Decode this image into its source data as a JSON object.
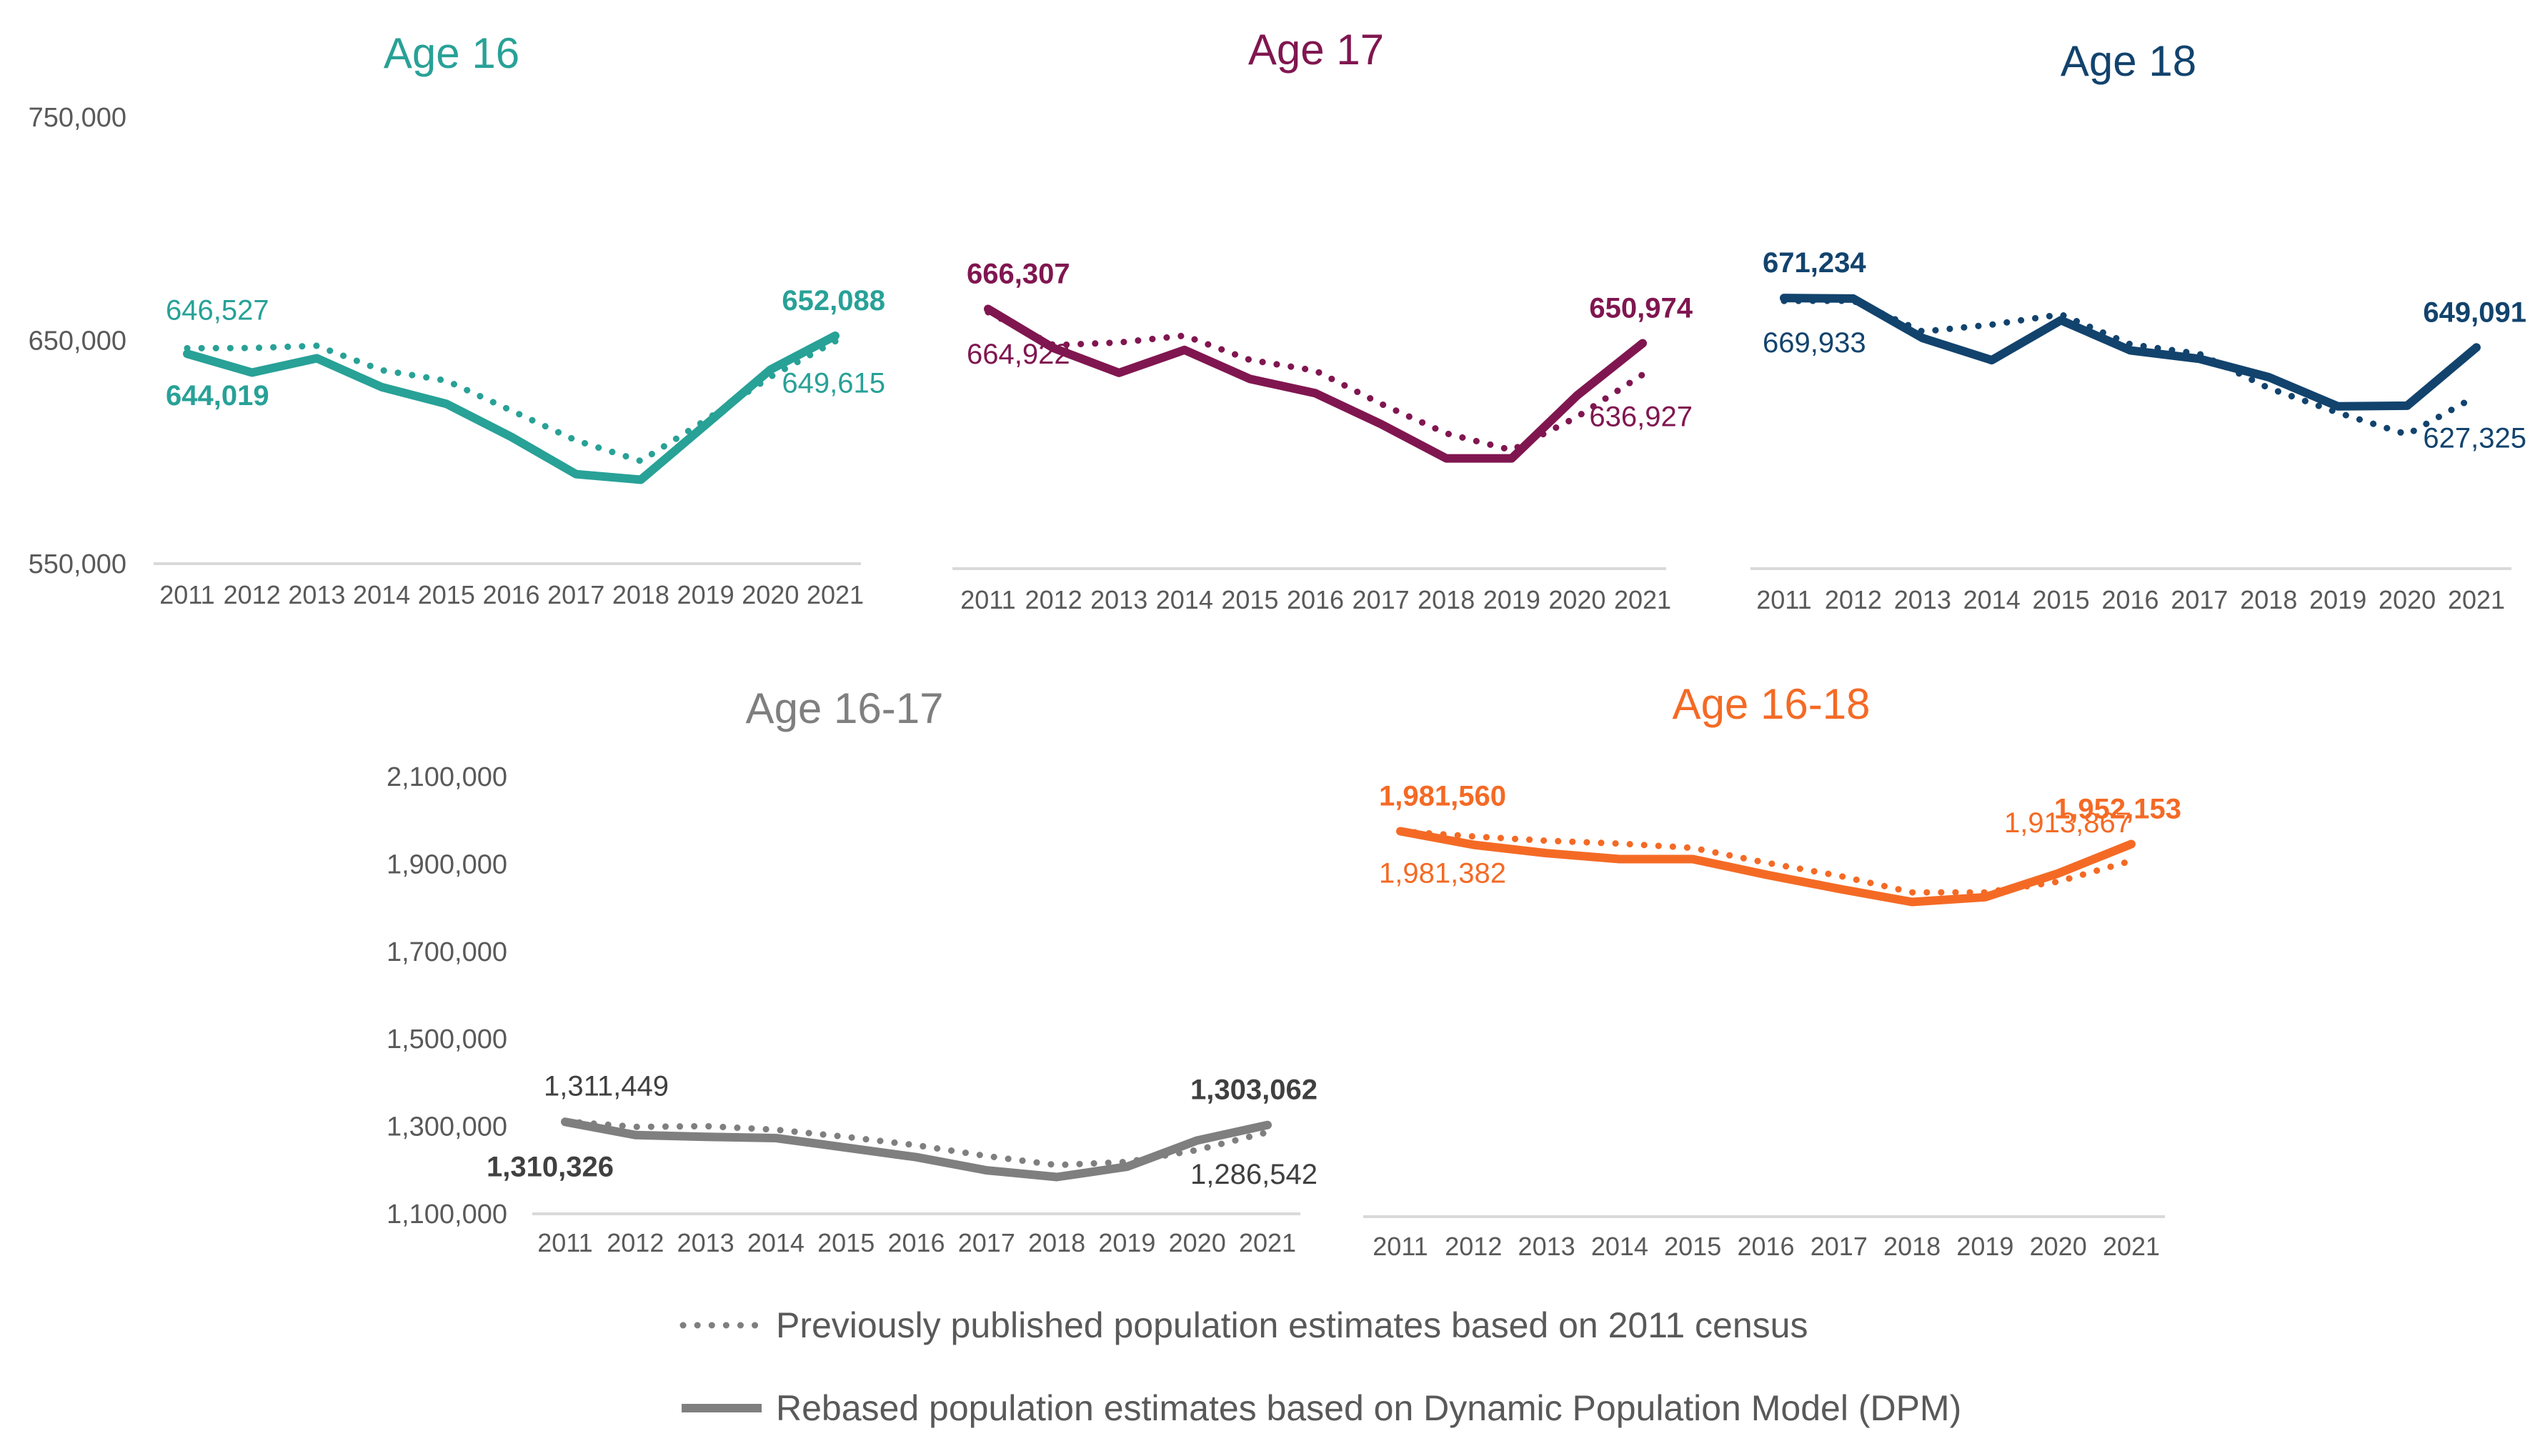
{
  "chart_data": [
    {
      "type": "line",
      "title": "Age 16",
      "color": "#28A197",
      "categories": [
        "2011",
        "2012",
        "2013",
        "2014",
        "2015",
        "2016",
        "2017",
        "2018",
        "2019",
        "2020",
        "2021"
      ],
      "ylim": [
        550000,
        750000
      ],
      "yticks": [
        550000,
        650000,
        750000
      ],
      "ytick_labels": [
        "550,000",
        "650,000",
        "750,000"
      ],
      "show_y_axis": true,
      "xlabel": "",
      "ylabel": "",
      "grid": false,
      "series": [
        {
          "name": "Previously published population estimates based on 2011 census",
          "style": "dotted",
          "values": [
            646527,
            646600,
            647600,
            636700,
            632000,
            618600,
            605200,
            596000,
            614300,
            633700,
            649615
          ]
        },
        {
          "name": "Rebased population estimates based on Dynamic Population Model (DPM)",
          "style": "solid",
          "values": [
            644019,
            635600,
            642000,
            629100,
            621600,
            606800,
            590100,
            587600,
            612200,
            636900,
            652088
          ]
        }
      ],
      "annotations": [
        {
          "text": "646,527",
          "series": 0,
          "index": 0,
          "bold": false,
          "position": "above-left"
        },
        {
          "text": "644,019",
          "series": 1,
          "index": 0,
          "bold": true,
          "position": "below"
        },
        {
          "text": "652,088",
          "series": 1,
          "index": 10,
          "bold": true,
          "position": "above"
        },
        {
          "text": "649,615",
          "series": 0,
          "index": 10,
          "bold": false,
          "position": "below"
        }
      ]
    },
    {
      "type": "line",
      "title": "Age 17",
      "color": "#801650",
      "categories": [
        "2011",
        "2012",
        "2013",
        "2014",
        "2015",
        "2016",
        "2017",
        "2018",
        "2019",
        "2020",
        "2021"
      ],
      "ylim": [
        550000,
        750000
      ],
      "show_y_axis": false,
      "xlabel": "",
      "ylabel": "",
      "grid": false,
      "series": [
        {
          "name": "Previously published population estimates based on 2011 census",
          "style": "dotted",
          "values": [
            664922,
            650100,
            651300,
            654400,
            643500,
            638700,
            623900,
            610600,
            603100,
            618000,
            636927
          ]
        },
        {
          "name": "Rebased population estimates based on Dynamic Population Model (DPM)",
          "style": "solid",
          "values": [
            666307,
            648800,
            637700,
            648000,
            635000,
            628600,
            614800,
            599400,
            599400,
            627600,
            650974
          ]
        }
      ],
      "annotations": [
        {
          "text": "666,307",
          "series": 1,
          "index": 0,
          "bold": true,
          "position": "above"
        },
        {
          "text": "664,922",
          "series": 0,
          "index": 0,
          "bold": false,
          "position": "below"
        },
        {
          "text": "650,974",
          "series": 1,
          "index": 10,
          "bold": true,
          "position": "above"
        },
        {
          "text": "636,927",
          "series": 0,
          "index": 10,
          "bold": false,
          "position": "below"
        }
      ]
    },
    {
      "type": "line",
      "title": "Age 18",
      "color": "#12436D",
      "categories": [
        "2011",
        "2012",
        "2013",
        "2014",
        "2015",
        "2016",
        "2017",
        "2018",
        "2019",
        "2020",
        "2021"
      ],
      "ylim": [
        550000,
        750000
      ],
      "show_y_axis": false,
      "xlabel": "",
      "ylabel": "",
      "grid": false,
      "series": [
        {
          "name": "Previously published population estimates based on 2011 census",
          "style": "dotted",
          "values": [
            669933,
            670000,
            656200,
            659300,
            663900,
            650500,
            646200,
            630900,
            619900,
            610100,
            627325
          ]
        },
        {
          "name": "Rebased population estimates based on Dynamic Population Model (DPM)",
          "style": "solid",
          "values": [
            671234,
            671000,
            653300,
            643400,
            661300,
            647800,
            644000,
            635800,
            622700,
            623000,
            649091
          ]
        }
      ],
      "annotations": [
        {
          "text": "671,234",
          "series": 1,
          "index": 0,
          "bold": true,
          "position": "above"
        },
        {
          "text": "669,933",
          "series": 0,
          "index": 0,
          "bold": false,
          "position": "below"
        },
        {
          "text": "649,091",
          "series": 1,
          "index": 10,
          "bold": true,
          "position": "above"
        },
        {
          "text": "627,325",
          "series": 0,
          "index": 10,
          "bold": false,
          "position": "below"
        }
      ]
    },
    {
      "type": "line",
      "title": "Age 16-17",
      "color": "#7F7F7F",
      "label_color": "#404040",
      "categories": [
        "2011",
        "2012",
        "2013",
        "2014",
        "2015",
        "2016",
        "2017",
        "2018",
        "2019",
        "2020",
        "2021"
      ],
      "ylim": [
        1100000,
        2100000
      ],
      "yticks": [
        1100000,
        1300000,
        1500000,
        1700000,
        1900000,
        2100000
      ],
      "ytick_labels": [
        "1,100,000",
        "1,300,000",
        "1,500,000",
        "1,700,000",
        "1,900,000",
        "2,100,000"
      ],
      "show_y_axis": true,
      "xlabel": "",
      "ylabel": "",
      "grid": false,
      "series": [
        {
          "name": "Previously published population estimates based on 2011 census",
          "style": "dotted",
          "values": [
            1311449,
            1298900,
            1300500,
            1292300,
            1276000,
            1256800,
            1232200,
            1211500,
            1218600,
            1245900,
            1286542
          ]
        },
        {
          "name": "Rebased population estimates based on Dynamic Population Model (DPM)",
          "style": "solid",
          "values": [
            1310326,
            1280300,
            1276000,
            1273200,
            1251400,
            1229500,
            1199500,
            1184200,
            1207700,
            1267800,
            1303062
          ]
        }
      ],
      "annotations": [
        {
          "text": "1,311,449",
          "series": 0,
          "index": 0,
          "bold": false,
          "position": "above"
        },
        {
          "text": "1,310,326",
          "series": 1,
          "index": 0,
          "bold": true,
          "position": "below-left"
        },
        {
          "text": "1,303,062",
          "series": 1,
          "index": 10,
          "bold": true,
          "position": "above"
        },
        {
          "text": "1,286,542",
          "series": 0,
          "index": 10,
          "bold": false,
          "position": "below"
        }
      ]
    },
    {
      "type": "line",
      "title": "Age 16-18",
      "color": "#F46A25",
      "categories": [
        "2011",
        "2012",
        "2013",
        "2014",
        "2015",
        "2016",
        "2017",
        "2018",
        "2019",
        "2020",
        "2021"
      ],
      "ylim": [
        1100000,
        2100000
      ],
      "show_y_axis": false,
      "xlabel": "",
      "ylabel": "",
      "grid": false,
      "series": [
        {
          "name": "Previously published population estimates based on 2011 census",
          "style": "dotted",
          "values": [
            1981382,
            1969600,
            1959800,
            1953200,
            1943400,
            1909700,
            1879700,
            1841600,
            1841600,
            1866100,
            1913867
          ]
        },
        {
          "name": "Rebased population estimates based on Dynamic Population Model (DPM)",
          "style": "solid",
          "values": [
            1981560,
            1950500,
            1931400,
            1917800,
            1917800,
            1882400,
            1849800,
            1819800,
            1830700,
            1885200,
            1952153
          ]
        }
      ],
      "annotations": [
        {
          "text": "1,981,560",
          "series": 1,
          "index": 0,
          "bold": true,
          "position": "above"
        },
        {
          "text": "1,981,382",
          "series": 0,
          "index": 0,
          "bold": false,
          "position": "below"
        },
        {
          "text": "1,952,153",
          "series": 1,
          "index": 10,
          "bold": true,
          "position": "above"
        },
        {
          "text": "1,913,867",
          "series": 0,
          "index": 10,
          "bold": false,
          "position": "above-left"
        }
      ]
    }
  ],
  "legend": {
    "placement": "bottom-center",
    "items": [
      {
        "label": "Previously published population estimates based on 2011 census",
        "style": "dotted",
        "color": "#7F7F7F"
      },
      {
        "label": "Rebased population estimates based on Dynamic Population Model (DPM)",
        "style": "solid",
        "color": "#7F7F7F"
      }
    ]
  },
  "axis_text_color": "#595959",
  "axis_line_color": "#D9D9D9"
}
